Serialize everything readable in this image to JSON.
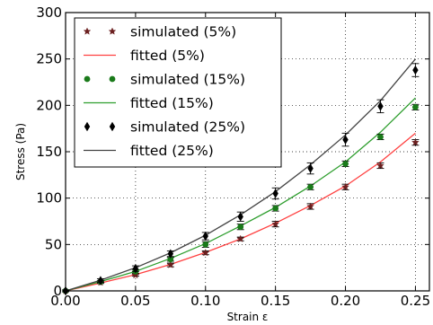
{
  "chart_data": {
    "type": "line",
    "xlabel": "Strain ε",
    "ylabel": "Stress (Pa)",
    "xlim": [
      0,
      0.26
    ],
    "ylim": [
      0,
      300
    ],
    "x_ticks": [
      "0.00",
      "0.05",
      "0.10",
      "0.15",
      "0.20",
      "0.25"
    ],
    "y_ticks": [
      "0",
      "50",
      "100",
      "150",
      "200",
      "250",
      "300"
    ],
    "grid": true,
    "legend_position": "top-left",
    "series": [
      {
        "name": "simulated (5%)",
        "kind": "marker",
        "marker": "star",
        "color": "#6b1f1f",
        "x": [
          0,
          0.025,
          0.05,
          0.075,
          0.1,
          0.125,
          0.15,
          0.175,
          0.2,
          0.225,
          0.25
        ],
        "values": [
          0,
          9,
          17,
          28,
          41,
          56,
          72,
          91,
          112,
          135,
          160
        ],
        "errors": [
          1,
          1,
          1,
          2,
          2,
          2,
          3,
          3,
          3,
          3,
          3
        ]
      },
      {
        "name": "fitted (5%)",
        "kind": "line",
        "color": "#ff4040",
        "x": [
          0,
          0.025,
          0.05,
          0.075,
          0.1,
          0.125,
          0.15,
          0.175,
          0.2,
          0.225,
          0.25
        ],
        "values": [
          0,
          8.5,
          17.5,
          28.5,
          41.5,
          56,
          73,
          92,
          113,
          139,
          170
        ]
      },
      {
        "name": "simulated (15%)",
        "kind": "marker",
        "marker": "circle",
        "color": "#1a7a1a",
        "x": [
          0,
          0.025,
          0.05,
          0.075,
          0.1,
          0.125,
          0.15,
          0.175,
          0.2,
          0.225,
          0.25
        ],
        "values": [
          0,
          10,
          21,
          34,
          50,
          69,
          89,
          112,
          137,
          166,
          198
        ],
        "errors": [
          1,
          1,
          2,
          2,
          3,
          3,
          3,
          3,
          3,
          3,
          3
        ]
      },
      {
        "name": "fitted (15%)",
        "kind": "line",
        "color": "#2e9e2e",
        "x": [
          0,
          0.025,
          0.05,
          0.075,
          0.1,
          0.125,
          0.15,
          0.175,
          0.2,
          0.225,
          0.25
        ],
        "values": [
          0,
          10,
          21,
          35,
          51,
          70,
          90,
          113,
          139,
          171,
          208
        ]
      },
      {
        "name": "simulated (25%)",
        "kind": "marker",
        "marker": "diamond",
        "color": "#000000",
        "x": [
          0,
          0.025,
          0.05,
          0.075,
          0.1,
          0.125,
          0.15,
          0.175,
          0.2,
          0.225,
          0.25
        ],
        "values": [
          0,
          11,
          24,
          40,
          59,
          80,
          105,
          132,
          163,
          199,
          238
        ],
        "errors": [
          1,
          2,
          3,
          3,
          4,
          5,
          6,
          6,
          7,
          7,
          7
        ]
      },
      {
        "name": "fitted (25%)",
        "kind": "line",
        "color": "#444444",
        "x": [
          0,
          0.025,
          0.05,
          0.075,
          0.1,
          0.125,
          0.15,
          0.175,
          0.2,
          0.225,
          0.25
        ],
        "values": [
          0,
          11.5,
          25,
          41,
          60,
          82,
          107,
          136,
          168,
          205,
          250
        ]
      }
    ]
  }
}
